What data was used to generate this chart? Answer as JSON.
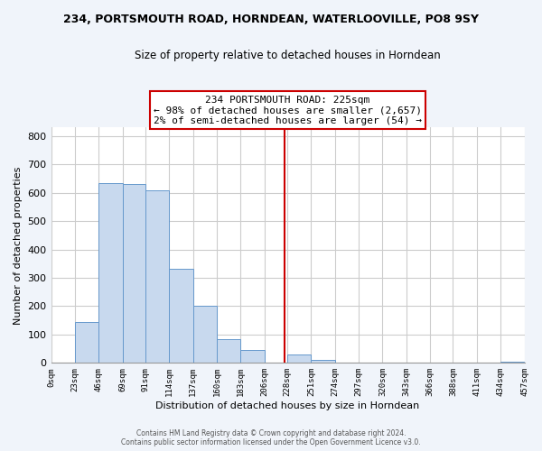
{
  "title1": "234, PORTSMOUTH ROAD, HORNDEAN, WATERLOOVILLE, PO8 9SY",
  "title2": "Size of property relative to detached houses in Horndean",
  "xlabel": "Distribution of detached houses by size in Horndean",
  "ylabel": "Number of detached properties",
  "bin_edges": [
    0,
    23,
    46,
    69,
    91,
    114,
    137,
    160,
    183,
    206,
    228,
    251,
    274,
    297,
    320,
    343,
    366,
    388,
    411,
    434,
    457
  ],
  "counts": [
    0,
    143,
    635,
    630,
    608,
    333,
    201,
    84,
    46,
    0,
    29,
    12,
    0,
    0,
    0,
    0,
    0,
    0,
    0,
    3
  ],
  "bar_color": "#c8d9ee",
  "bar_edge_color": "#6699cc",
  "vline_x": 225,
  "vline_color": "#cc0000",
  "annotation_box_title": "234 PORTSMOUTH ROAD: 225sqm",
  "annotation_line1": "← 98% of detached houses are smaller (2,657)",
  "annotation_line2": "2% of semi-detached houses are larger (54) →",
  "annotation_box_edge_color": "#cc0000",
  "ylim": [
    0,
    830
  ],
  "yticks": [
    0,
    100,
    200,
    300,
    400,
    500,
    600,
    700,
    800
  ],
  "tick_labels": [
    "0sqm",
    "23sqm",
    "46sqm",
    "69sqm",
    "91sqm",
    "114sqm",
    "137sqm",
    "160sqm",
    "183sqm",
    "206sqm",
    "228sqm",
    "251sqm",
    "274sqm",
    "297sqm",
    "320sqm",
    "343sqm",
    "366sqm",
    "388sqm",
    "411sqm",
    "434sqm",
    "457sqm"
  ],
  "footer1": "Contains HM Land Registry data © Crown copyright and database right 2024.",
  "footer2": "Contains public sector information licensed under the Open Government Licence v3.0.",
  "plot_bg_color": "#ffffff",
  "fig_bg_color": "#f0f4fa",
  "grid_color": "#cccccc"
}
